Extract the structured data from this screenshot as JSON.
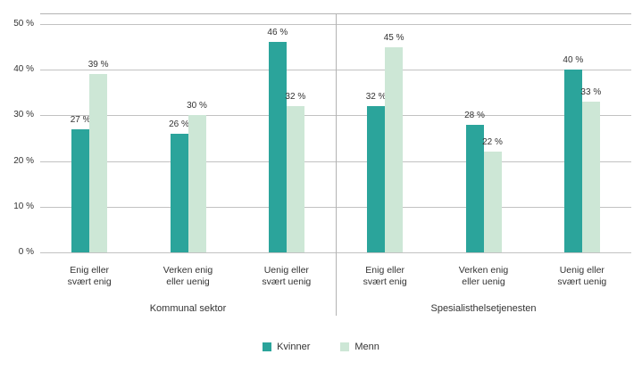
{
  "chart_data": {
    "type": "bar",
    "title": "",
    "xlabel": "",
    "ylabel": "",
    "ylim": [
      0,
      50
    ],
    "grid": true,
    "yticks": [
      {
        "label": "0 %",
        "value": 0
      },
      {
        "label": "10 %",
        "value": 10
      },
      {
        "label": "20 %",
        "value": 20
      },
      {
        "label": "30 %",
        "value": 30
      },
      {
        "label": "40 %",
        "value": 40
      },
      {
        "label": "50 %",
        "value": 50
      }
    ],
    "series": [
      {
        "name": "Kvinner",
        "color": "#2BA49B"
      },
      {
        "name": "Menn",
        "color": "#CDE7D6"
      }
    ],
    "groups": [
      {
        "label": "Kommunal sektor",
        "categories": [
          {
            "label_lines": [
              "Enig eller",
              "svært enig"
            ],
            "values": [
              27,
              39
            ],
            "value_labels": [
              "27 %",
              "39 %"
            ]
          },
          {
            "label_lines": [
              "Verken enig",
              "eller uenig"
            ],
            "values": [
              26,
              30
            ],
            "value_labels": [
              "26 %",
              "30 %"
            ]
          },
          {
            "label_lines": [
              "Uenig eller",
              "svært uenig"
            ],
            "values": [
              46,
              32
            ],
            "value_labels": [
              "46 %",
              "32 %"
            ]
          }
        ]
      },
      {
        "label": "Spesialisthelsetjenesten",
        "categories": [
          {
            "label_lines": [
              "Enig eller",
              "svært enig"
            ],
            "values": [
              32,
              45
            ],
            "value_labels": [
              "32 %",
              "45 %"
            ]
          },
          {
            "label_lines": [
              "Verken enig",
              "eller uenig"
            ],
            "values": [
              28,
              22
            ],
            "value_labels": [
              "28 %",
              "22 %"
            ]
          },
          {
            "label_lines": [
              "Uenig eller",
              "svært uenig"
            ],
            "values": [
              40,
              33
            ],
            "value_labels": [
              "40 %",
              "33 %"
            ]
          }
        ]
      }
    ],
    "legend": {
      "position": "bottom",
      "items": [
        "Kvinner",
        "Menn"
      ]
    }
  }
}
